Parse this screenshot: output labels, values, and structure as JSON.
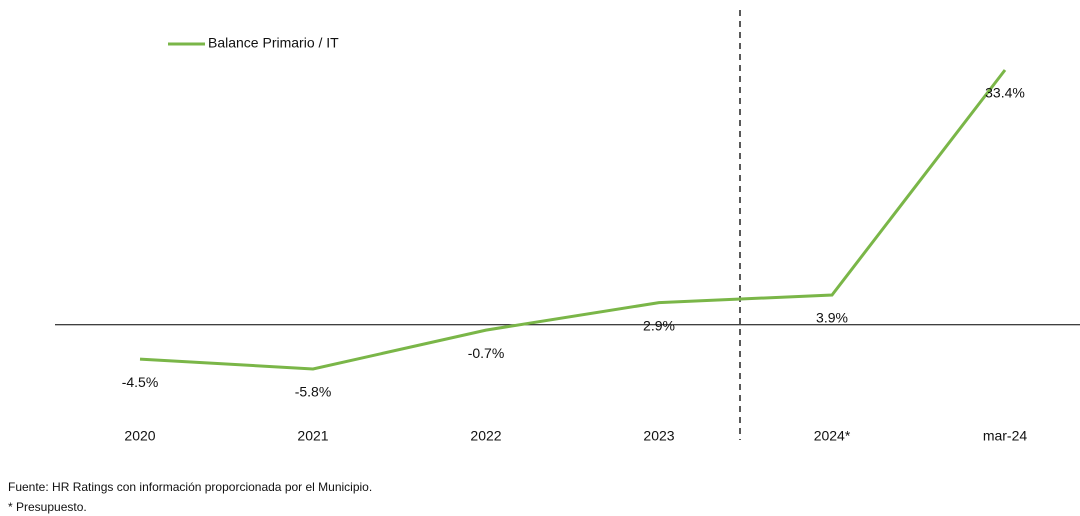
{
  "chart_data": {
    "type": "line",
    "categories": [
      "2020",
      "2021",
      "2022",
      "2023",
      "2024*",
      "mar-24"
    ],
    "series": [
      {
        "name": "Balance Primario / IT",
        "color": "#7ab648",
        "values": [
          -4.5,
          -5.8,
          -0.7,
          2.9,
          3.9,
          33.4
        ],
        "value_labels": [
          "-4.5%",
          "-5.8%",
          "-0.7%",
          "2.9%",
          "3.9%",
          "33.4%"
        ]
      }
    ],
    "legend": "top-left"
  },
  "notes": [
    "Fuente: HR Ratings con información proporcionada por el Municipio.",
    "* Presupuesto."
  ]
}
